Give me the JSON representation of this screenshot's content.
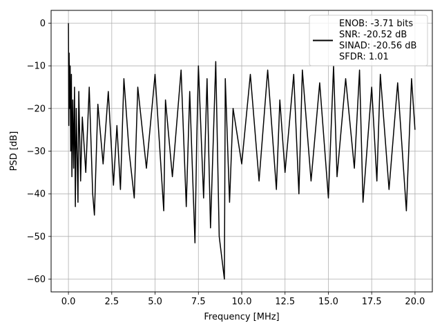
{
  "chart_data": {
    "type": "line",
    "title": "",
    "xlabel": "Frequency [MHz]",
    "ylabel": "PSD [dB]",
    "xlim": [
      -1.0,
      21.0
    ],
    "ylim": [
      -63.0,
      3.0
    ],
    "xticks": [
      0.0,
      2.5,
      5.0,
      7.5,
      10.0,
      12.5,
      15.0,
      17.5,
      20.0
    ],
    "xtick_labels": [
      "0.0",
      "2.5",
      "5.0",
      "7.5",
      "10.0",
      "12.5",
      "15.0",
      "17.5",
      "20.0"
    ],
    "yticks": [
      0,
      -10,
      -20,
      -30,
      -40,
      -50,
      -60
    ],
    "ytick_labels": [
      "0",
      "−10",
      "−20",
      "−30",
      "−40",
      "−50",
      "−60"
    ],
    "grid": true,
    "legend_position": "top-right",
    "legend_lines": [
      "ENOB: -3.71 bits",
      "SNR: -20.52 dB",
      "SINAD: -20.56 dB",
      "SFDR: 1.01"
    ],
    "series": [
      {
        "color": "#000000",
        "x": [
          0.0,
          0.02,
          0.04,
          0.07,
          0.1,
          0.13,
          0.17,
          0.2,
          0.25,
          0.3,
          0.35,
          0.4,
          0.45,
          0.55,
          0.6,
          0.7,
          0.8,
          1.0,
          1.2,
          1.4,
          1.5,
          1.7,
          2.0,
          2.3,
          2.6,
          2.8,
          3.0,
          3.2,
          3.5,
          3.8,
          4.0,
          4.5,
          5.0,
          5.5,
          5.6,
          6.0,
          6.5,
          6.8,
          7.0,
          7.3,
          7.4,
          7.5,
          7.8,
          8.0,
          8.2,
          8.5,
          8.7,
          9.0,
          9.05,
          9.3,
          9.5,
          10.0,
          10.5,
          11.0,
          11.5,
          12.0,
          12.2,
          12.5,
          13.0,
          13.3,
          13.5,
          14.0,
          14.5,
          15.0,
          15.3,
          15.5,
          16.0,
          16.5,
          16.8,
          17.0,
          17.5,
          17.8,
          18.0,
          18.5,
          19.0,
          19.5,
          19.8,
          20.0
        ],
        "y": [
          0,
          -24,
          -7,
          -20,
          -10,
          -30,
          -12,
          -36,
          -18,
          -34,
          -15,
          -43,
          -20,
          -42,
          -16,
          -37,
          -22,
          -35,
          -15,
          -40,
          -45,
          -19,
          -33,
          -16,
          -38,
          -24,
          -39,
          -13,
          -30,
          -41,
          -15,
          -34,
          -12,
          -44,
          -18,
          -36,
          -11,
          -43,
          -16,
          -51.5,
          -28,
          -10,
          -41,
          -13,
          -48,
          -9,
          -50,
          -60,
          -13,
          -42,
          -20,
          -33,
          -12,
          -37,
          -11,
          -39,
          -18,
          -35,
          -12,
          -40,
          -11,
          -37,
          -14,
          -41,
          -10,
          -36,
          -13,
          -34,
          -11,
          -42,
          -15,
          -37,
          -12,
          -39,
          -14,
          -44,
          -13,
          -25
        ]
      }
    ]
  }
}
